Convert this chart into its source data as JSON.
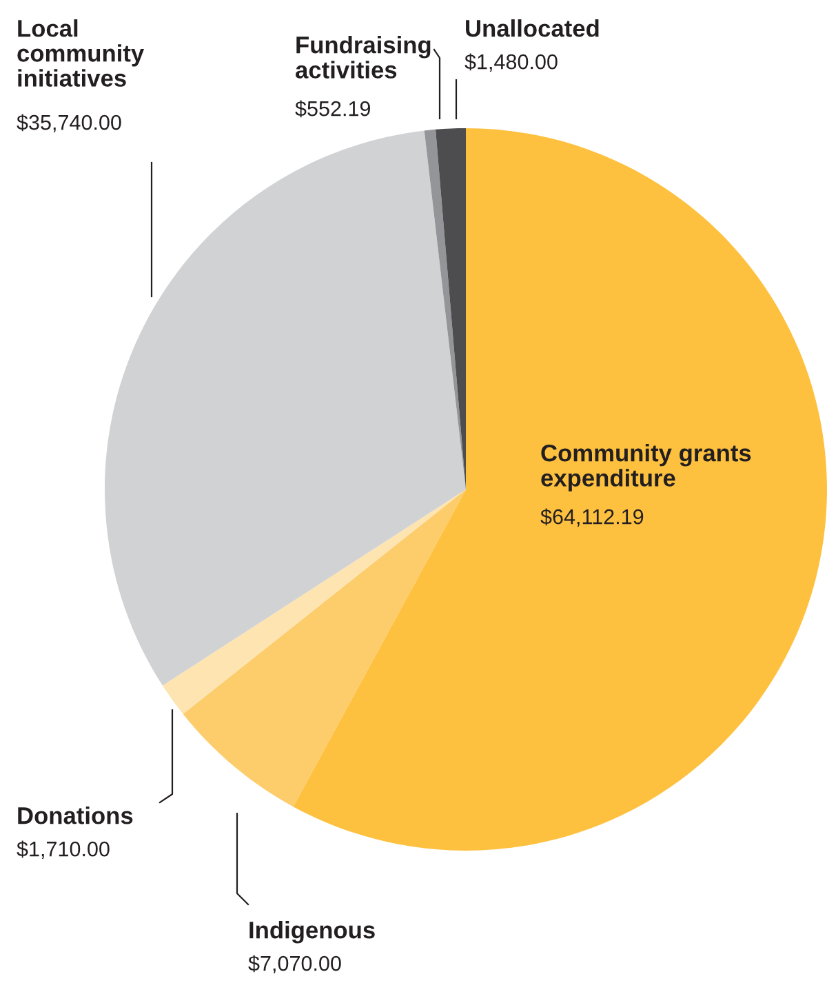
{
  "chart_data": {
    "type": "pie",
    "categories": [
      "Community grants expenditure",
      "Indigenous",
      "Donations",
      "Local community initiatives",
      "Fundraising activities",
      "Unallocated"
    ],
    "values": [
      64112.19,
      7070.0,
      1710.0,
      35740.0,
      552.19,
      1480.0
    ],
    "colors": [
      "#fec13f",
      "#fdcc6b",
      "#fde4b0",
      "#d1d2d4",
      "#939598",
      "#4d4d4f"
    ],
    "value_labels": [
      "$64,112.19",
      "$7,070.00",
      "$1,710.00",
      "$35,740.00",
      "$552.19",
      "$1,480.00"
    ],
    "legend": false
  }
}
